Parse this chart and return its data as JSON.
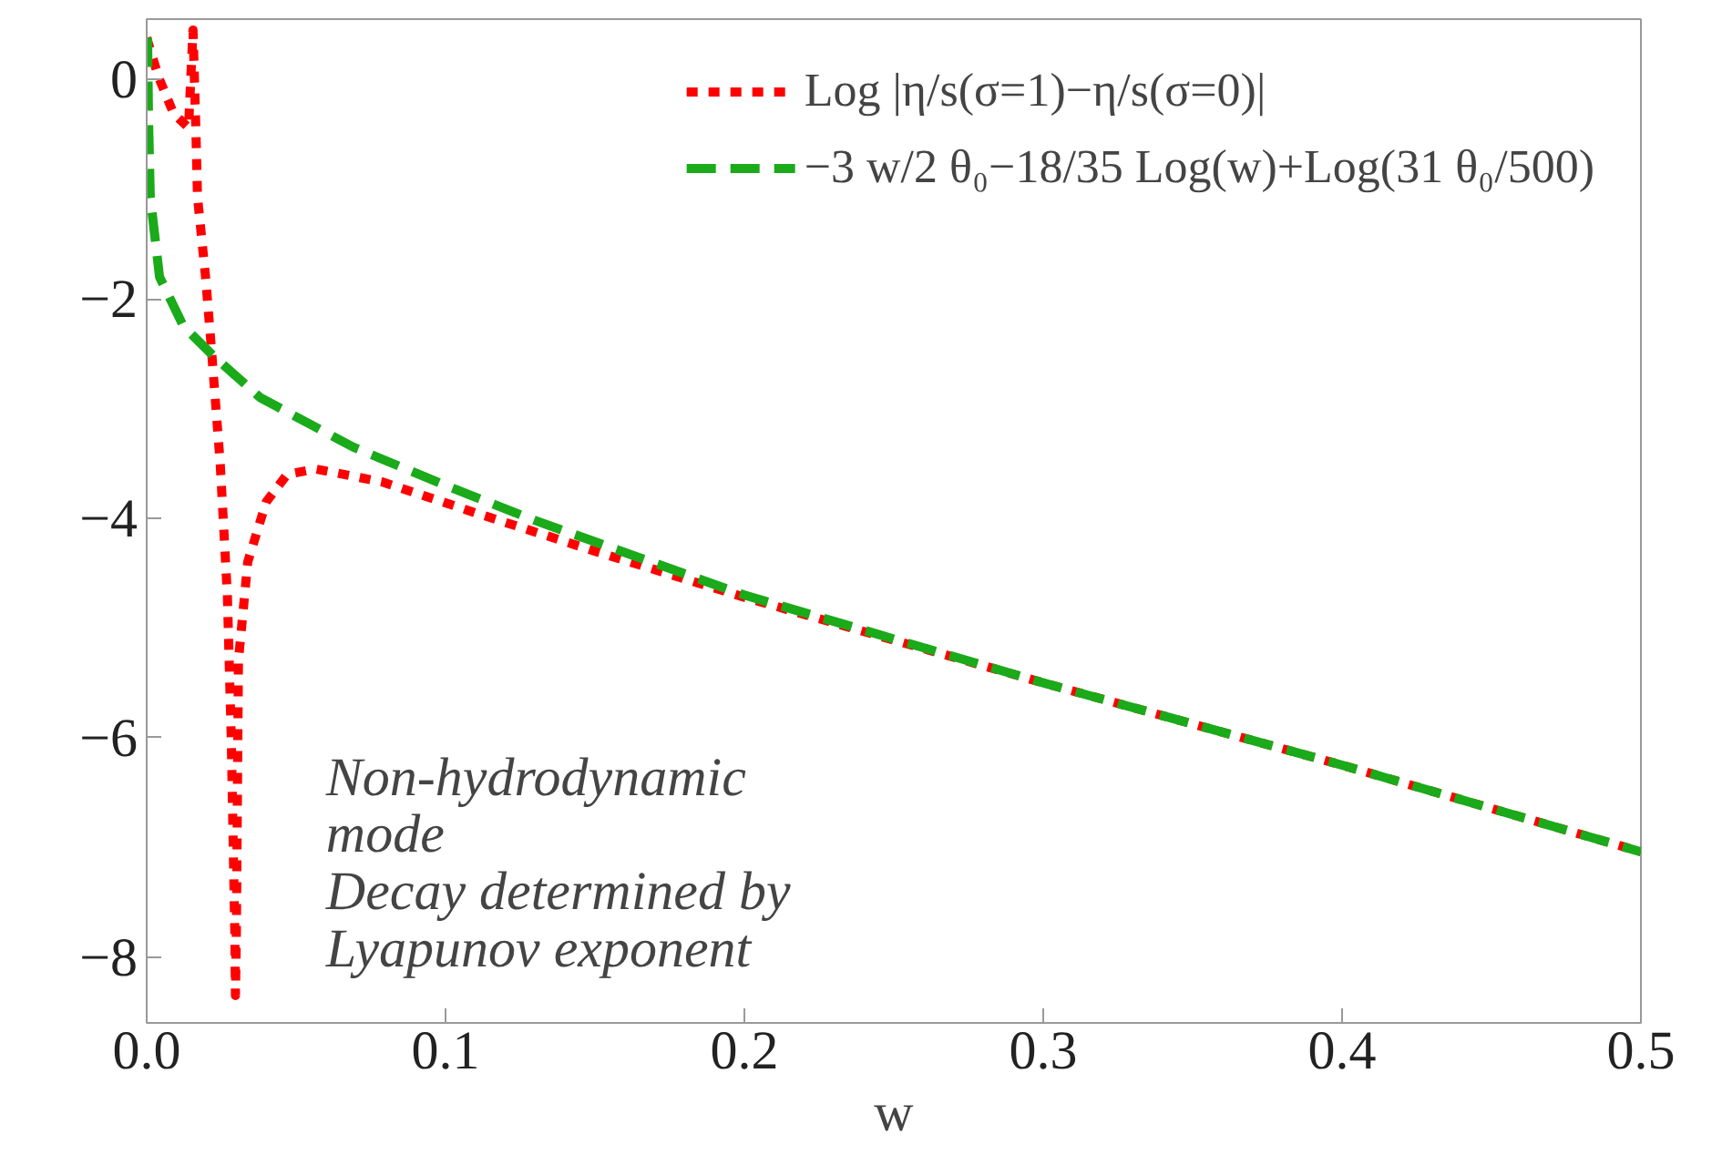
{
  "chart_data": {
    "type": "line",
    "xlabel": "w",
    "xlim": [
      0,
      0.5
    ],
    "ylim": [
      -8.6,
      0.55
    ],
    "xticks": [
      {
        "value": 0,
        "label": "0.0"
      },
      {
        "value": 0.1,
        "label": "0.1"
      },
      {
        "value": 0.2,
        "label": "0.2"
      },
      {
        "value": 0.3,
        "label": "0.3"
      },
      {
        "value": 0.4,
        "label": "0.4"
      },
      {
        "value": 0.5,
        "label": "0.5"
      }
    ],
    "yticks": [
      0,
      {
        "value": -2,
        "label": "−2"
      },
      {
        "value": -4,
        "label": "−4"
      },
      {
        "value": -6,
        "label": "−6"
      },
      {
        "value": -8,
        "label": "−8"
      }
    ],
    "grid": false,
    "legend": "top right",
    "marker": "none",
    "series": [
      {
        "name": "Log |η/s(σ=1)−η/s(σ=0)|",
        "color": "#ff0000",
        "line_style": "dotted",
        "x": [
          0,
          0.004,
          0.009,
          0.014,
          0.0155,
          0.0165,
          0.017,
          0.0197,
          0.0215,
          0.0246,
          0.027,
          0.0283,
          0.0295,
          0.0297,
          0.03,
          0.0307,
          0.0338,
          0.04,
          0.047,
          0.0565,
          0.079,
          0.11,
          0.15,
          0.2,
          0.3,
          0.4,
          0.5
        ],
        "values": [
          0.38,
          0.02,
          -0.31,
          -0.44,
          0.45,
          -0.5,
          -1.07,
          -1.8,
          -2.4,
          -3.5,
          -4.7,
          -6.0,
          -7.8,
          -8.35,
          -7.8,
          -5.3,
          -4.4,
          -3.85,
          -3.6,
          -3.55,
          -3.67,
          -3.95,
          -4.3,
          -4.72,
          -5.5,
          -6.25,
          -7.04
        ]
      },
      {
        "name": "−3 w/2 θ₀−18/35 Log(w)+Log(31 θ₀/500)",
        "color": "#1aaa1a",
        "line_style": "dashed",
        "x": [
          0.0003,
          0.0006,
          0.0012,
          0.0043,
          0.0123,
          0.0227,
          0.038,
          0.069,
          0.1,
          0.13,
          0.2,
          0.3,
          0.4,
          0.5
        ],
        "values": [
          0.38,
          -0.35,
          -1.07,
          -1.8,
          -2.25,
          -2.53,
          -2.9,
          -3.35,
          -3.7,
          -4.02,
          -4.7,
          -5.5,
          -6.25,
          -7.04
        ]
      }
    ],
    "annotations": [
      "Non-hydrodynamic\nmode\nDecay determined by\nLyapunov exponent"
    ]
  }
}
